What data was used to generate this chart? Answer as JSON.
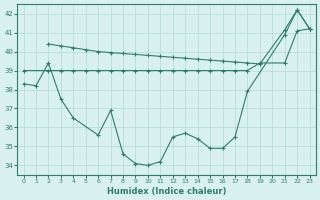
{
  "xlabel": "Humidex (Indice chaleur)",
  "line_top": {
    "x": [
      2,
      3,
      4,
      5,
      6,
      7,
      8,
      9,
      10,
      11,
      12,
      13,
      14,
      15,
      16,
      17,
      18,
      19,
      21,
      22,
      23
    ],
    "y": [
      40.4,
      40.3,
      40.2,
      40.1,
      40.0,
      39.95,
      39.9,
      39.85,
      39.8,
      39.75,
      39.7,
      39.65,
      39.6,
      39.55,
      39.5,
      39.45,
      39.4,
      39.35,
      41.15,
      42.2,
      41.2
    ]
  },
  "line_mid": {
    "x": [
      0,
      2,
      3,
      4,
      5,
      6,
      7,
      8,
      9,
      10,
      11,
      12,
      13,
      14,
      15,
      16,
      17,
      18,
      19,
      21,
      22,
      23
    ],
    "y": [
      39.0,
      39.0,
      39.0,
      39.0,
      39.0,
      39.0,
      39.0,
      39.0,
      39.0,
      39.0,
      39.0,
      39.0,
      39.0,
      39.0,
      39.0,
      39.0,
      39.0,
      39.0,
      39.4,
      39.4,
      41.1,
      41.2
    ]
  },
  "line_bot": {
    "x": [
      0,
      1,
      2,
      3,
      4,
      6,
      7,
      8,
      9,
      10,
      11,
      12,
      13,
      14,
      15,
      16,
      17,
      18,
      21,
      22,
      23
    ],
    "y": [
      38.3,
      38.2,
      39.4,
      37.5,
      36.5,
      35.6,
      36.9,
      34.6,
      34.1,
      34.0,
      34.2,
      35.5,
      35.7,
      35.4,
      34.9,
      34.9,
      35.5,
      37.9,
      40.9,
      42.2,
      41.2
    ]
  },
  "color": "#2e7d6e",
  "bg_color": "#d8f0f0",
  "grid_color": "#b0d8d8",
  "ylim": [
    33.5,
    42.5
  ],
  "xlim": [
    -0.5,
    23.5
  ],
  "yticks": [
    34,
    35,
    36,
    37,
    38,
    39,
    40,
    41,
    42
  ],
  "xticks": [
    0,
    1,
    2,
    3,
    4,
    5,
    6,
    7,
    8,
    9,
    10,
    11,
    12,
    13,
    14,
    15,
    16,
    17,
    18,
    19,
    20,
    21,
    22,
    23
  ]
}
